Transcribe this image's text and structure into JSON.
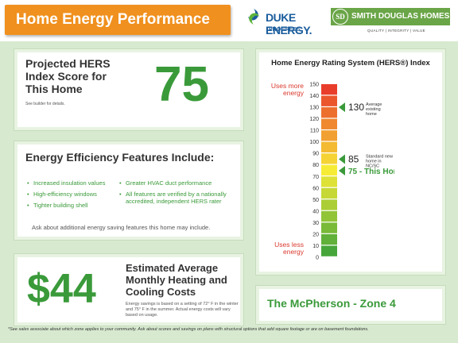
{
  "header": {
    "title": "Home Energy Performance",
    "duke_logo": {
      "name": "DUKE ENERGY.",
      "sub": "PROGRESS",
      "icon": "duke-energy-logo-icon",
      "color": "#1a5c9c"
    },
    "sdh_logo": {
      "monogram": "SD",
      "name": "SMITH DOUGLAS HOMES",
      "tagline": "QUALITY | INTEGRITY | VALUE",
      "color": "#6aa547"
    }
  },
  "hers": {
    "title": "Projected HERS Index Score for This Home",
    "note": "See builder for details.",
    "score": "75"
  },
  "features": {
    "title": "Energy Efficiency Features Include:",
    "left": [
      "Increased insulation values",
      "High-efficiency windows",
      "Tighter building shell"
    ],
    "right": [
      "Greater HVAC duct performance",
      "All features are verified by a nationally accredited, independent HERS rater"
    ],
    "note": "Ask about additional energy saving features this home may include."
  },
  "cost": {
    "value": "$44",
    "title": "Estimated Average Monthly Heating and Cooling Costs",
    "note": "Energy savings is based on a setting of 72° F in the winter and 75° F in the summer. Actual energy costs will vary based on usage."
  },
  "index": {
    "title": "Home Energy Rating System (HERS®) Index",
    "top_label": "Uses more energy",
    "bottom_label": "Uses less energy"
  },
  "model": {
    "name": "The McPherson - Zone 4"
  },
  "footnote": "*See sales associate about which zone applies to your community.  Ask about scores and savings on plans with structural options that add square footage or are on basement foundations.",
  "chart_data": {
    "type": "bar",
    "title": "Home Energy Rating System (HERS®) Index",
    "ylim": [
      0,
      150
    ],
    "ticks": [
      "150",
      "140",
      "130",
      "120",
      "110",
      "100",
      "90",
      "80",
      "70",
      "60",
      "50",
      "40",
      "30",
      "20",
      "10",
      "0"
    ],
    "colors": {
      "high": "#e8302a",
      "mid": "#f7ec35",
      "low": "#3aa13a",
      "marker": "#3a9a3a"
    },
    "markers": [
      {
        "value": 130,
        "label": "130",
        "desc": "Average existing home"
      },
      {
        "value": 85,
        "label": "85",
        "desc": "Standard new home in NC/SC"
      },
      {
        "value": 75,
        "label": "75 - This Home",
        "desc": ""
      }
    ]
  }
}
